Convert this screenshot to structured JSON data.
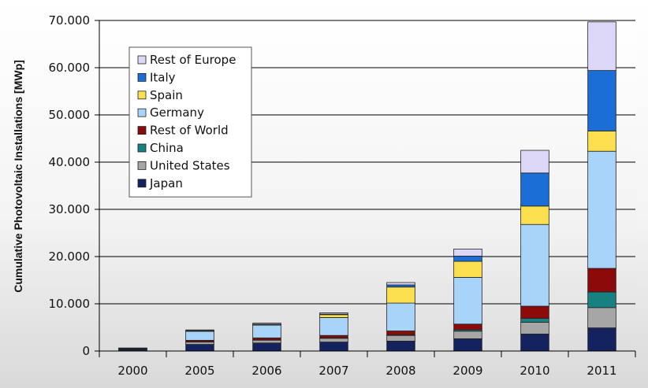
{
  "chart_data": {
    "type": "bar",
    "stacked": true,
    "title": "",
    "xlabel": "",
    "ylabel": "Cumulative Photovoltaic Installations [MWp]",
    "ylim": [
      0,
      70000
    ],
    "yticks": [
      "0",
      "10.000",
      "20.000",
      "30.000",
      "40.000",
      "50.000",
      "60.000",
      "70.000"
    ],
    "grid": "horizontal",
    "legend_position": "top-left",
    "categories": [
      "2000",
      "2005",
      "2006",
      "2007",
      "2008",
      "2009",
      "2010",
      "2011"
    ],
    "series": [
      {
        "name": "Japan",
        "color": "#14235e",
        "values": [
          300,
          1400,
          1700,
          1900,
          2100,
          2600,
          3600,
          4900
        ]
      },
      {
        "name": "United States",
        "color": "#a6a6a6",
        "values": [
          100,
          500,
          600,
          800,
          1200,
          1600,
          2500,
          4300
        ]
      },
      {
        "name": "China",
        "color": "#178080",
        "values": [
          20,
          70,
          80,
          100,
          150,
          300,
          800,
          3300
        ]
      },
      {
        "name": "Rest of World",
        "color": "#8c0a0a",
        "values": [
          60,
          300,
          400,
          500,
          800,
          1200,
          2600,
          5000
        ]
      },
      {
        "name": "Germany",
        "color": "#a8d4fa",
        "values": [
          100,
          1900,
          2700,
          3800,
          5900,
          9900,
          17300,
          24800
        ]
      },
      {
        "name": "Spain",
        "color": "#fbdf4e",
        "values": [
          0,
          100,
          150,
          600,
          3400,
          3400,
          3900,
          4300
        ]
      },
      {
        "name": "Italy",
        "color": "#1a6ed6",
        "values": [
          20,
          50,
          60,
          120,
          450,
          1100,
          7000,
          12800
        ]
      },
      {
        "name": "Rest of Europe",
        "color": "#dcd6f7",
        "values": [
          50,
          150,
          210,
          280,
          500,
          1500,
          4800,
          10300
        ]
      }
    ]
  }
}
